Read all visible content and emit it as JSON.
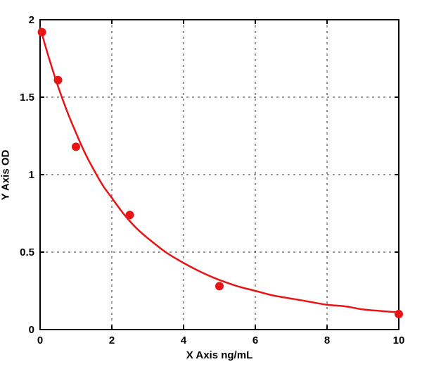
{
  "figure": {
    "background": "#ffffff"
  },
  "chart_data": {
    "type": "scatter",
    "title": "",
    "xlabel": "X Axis ng/mL",
    "ylabel": "Y Axis OD",
    "xlim": [
      0,
      10
    ],
    "ylim": [
      0,
      2
    ],
    "x_ticks": [
      0,
      2,
      4,
      6,
      8,
      10
    ],
    "y_ticks": [
      0,
      0.5,
      1,
      1.5,
      2
    ],
    "x_tick_labels": [
      "0",
      "2",
      "4",
      "6",
      "8",
      "10"
    ],
    "y_tick_labels": [
      "0",
      "0.5",
      "1",
      "1.5",
      "2"
    ],
    "grid": "dashed",
    "legend": "none",
    "colors": {
      "points": "#e81416",
      "curve": "#e81416",
      "axis": "#000000",
      "grid": "#333333"
    },
    "series": [
      {
        "name": "standard-points",
        "type": "scatter",
        "marker": "filled-circle",
        "color": "#e81416",
        "points": [
          [
            0.05,
            1.92
          ],
          [
            0.5,
            1.61
          ],
          [
            1,
            1.18
          ],
          [
            2.5,
            0.74
          ],
          [
            5,
            0.28
          ],
          [
            10,
            0.1
          ]
        ]
      },
      {
        "name": "fit-curve",
        "type": "line",
        "color": "#e81416",
        "points": [
          [
            0,
            1.95
          ],
          [
            0.25,
            1.75
          ],
          [
            0.5,
            1.57
          ],
          [
            0.75,
            1.41
          ],
          [
            1,
            1.27
          ],
          [
            1.25,
            1.14
          ],
          [
            1.5,
            1.03
          ],
          [
            1.75,
            0.93
          ],
          [
            2,
            0.85
          ],
          [
            2.25,
            0.77
          ],
          [
            2.5,
            0.7
          ],
          [
            2.75,
            0.64
          ],
          [
            3,
            0.59
          ],
          [
            3.5,
            0.5
          ],
          [
            4,
            0.43
          ],
          [
            4.5,
            0.37
          ],
          [
            5,
            0.32
          ],
          [
            5.5,
            0.28
          ],
          [
            6,
            0.25
          ],
          [
            6.5,
            0.22
          ],
          [
            7,
            0.2
          ],
          [
            7.5,
            0.18
          ],
          [
            8,
            0.16
          ],
          [
            8.5,
            0.15
          ],
          [
            9,
            0.13
          ],
          [
            9.5,
            0.12
          ],
          [
            10,
            0.11
          ]
        ]
      }
    ]
  }
}
